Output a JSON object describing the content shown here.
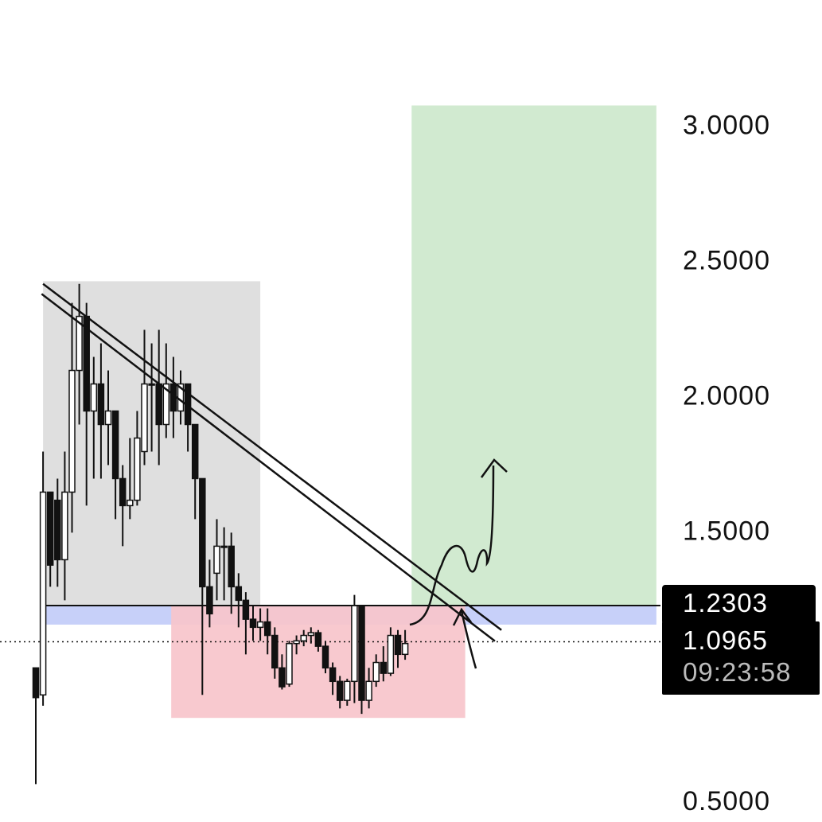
{
  "chart_data": {
    "type": "candlestick",
    "ylim": [
      0.43,
      3.47
    ],
    "yticks": [
      {
        "value": 0.5,
        "label": "0.5000"
      },
      {
        "value": 1.5,
        "label": "1.5000"
      },
      {
        "value": 2.0,
        "label": "2.0000"
      },
      {
        "value": 2.5,
        "label": "2.5000"
      },
      {
        "value": 3.0,
        "label": "3.0000"
      }
    ],
    "up_color": "#ffffff",
    "down_color": "#111111",
    "open": [
      1.0,
      0.9,
      1.65,
      1.62,
      1.4,
      1.65,
      2.1,
      2.3,
      1.95,
      2.05,
      1.9,
      1.95,
      1.7,
      1.6,
      1.62,
      1.8,
      2.05,
      2.05,
      1.9,
      2.05,
      1.95,
      2.05,
      1.9,
      1.7,
      1.3,
      1.35,
      1.45,
      1.45,
      1.3,
      1.25,
      1.18,
      1.15,
      1.17,
      1.12,
      1.0,
      0.94,
      1.09,
      1.1,
      1.12,
      1.13,
      1.08,
      1.0,
      0.95,
      0.88,
      0.95,
      1.23,
      0.88,
      0.95,
      1.02,
      0.98,
      1.12,
      1.05
    ],
    "high": [
      1.0,
      1.8,
      1.65,
      1.7,
      1.8,
      2.35,
      2.42,
      2.35,
      2.15,
      2.2,
      2.1,
      1.95,
      1.75,
      1.85,
      1.95,
      2.25,
      2.2,
      2.25,
      2.2,
      2.15,
      2.1,
      2.05,
      1.9,
      1.7,
      1.4,
      1.55,
      1.52,
      1.5,
      1.35,
      1.28,
      1.23,
      1.22,
      1.22,
      1.15,
      1.05,
      1.1,
      1.12,
      1.14,
      1.15,
      1.14,
      1.1,
      1.02,
      0.97,
      0.96,
      1.27,
      1.23,
      1.0,
      1.05,
      1.08,
      1.15,
      1.14,
      1.14
    ],
    "low": [
      0.57,
      0.86,
      1.3,
      1.3,
      1.25,
      1.5,
      1.9,
      1.6,
      1.7,
      1.7,
      1.75,
      1.55,
      1.45,
      1.55,
      1.6,
      1.75,
      1.8,
      1.75,
      1.85,
      1.85,
      1.9,
      1.8,
      1.55,
      0.9,
      1.15,
      1.25,
      1.25,
      1.2,
      1.15,
      1.05,
      1.1,
      1.1,
      1.05,
      0.96,
      0.92,
      0.93,
      1.05,
      1.08,
      1.09,
      1.06,
      0.98,
      0.9,
      0.85,
      0.86,
      0.87,
      0.83,
      0.85,
      0.93,
      0.95,
      0.97,
      1.0,
      1.03
    ],
    "close": [
      0.89,
      1.65,
      1.38,
      1.4,
      1.65,
      2.1,
      2.3,
      1.95,
      2.05,
      1.9,
      1.95,
      1.7,
      1.6,
      1.62,
      1.85,
      2.05,
      2.05,
      1.9,
      2.05,
      1.95,
      2.05,
      1.9,
      1.7,
      1.3,
      1.2,
      1.45,
      1.45,
      1.3,
      1.25,
      1.18,
      1.15,
      1.17,
      1.12,
      1.0,
      0.93,
      1.09,
      1.1,
      1.12,
      1.13,
      1.08,
      1.0,
      0.95,
      0.88,
      0.95,
      1.23,
      0.88,
      0.95,
      1.02,
      0.98,
      1.12,
      1.05,
      1.09
    ],
    "zones": [
      {
        "x": [
          1,
          31
        ],
        "y": [
          1.2303,
          2.43
        ],
        "color": "#dcdcdc"
      },
      {
        "x": [
          51.9,
          85.7
        ],
        "y": [
          1.2303,
          3.08
        ],
        "color": "#cde8cc"
      },
      {
        "x": [
          1,
          85.7
        ],
        "y": [
          1.16,
          1.2303
        ],
        "color": "#c2ccf8"
      },
      {
        "x": [
          18.7,
          59.3
        ],
        "y": [
          0.815,
          1.2303
        ],
        "color": "#f7c4cb"
      }
    ],
    "trendlines": [
      {
        "x": [
          1,
          64.3
        ],
        "y": [
          2.42,
          1.14
        ]
      },
      {
        "x": [
          0.8,
          63.4
        ],
        "y": [
          2.383,
          1.099
        ]
      }
    ],
    "level": 1.2303,
    "last_price": 1.0965,
    "countdown": "09:23:58"
  }
}
